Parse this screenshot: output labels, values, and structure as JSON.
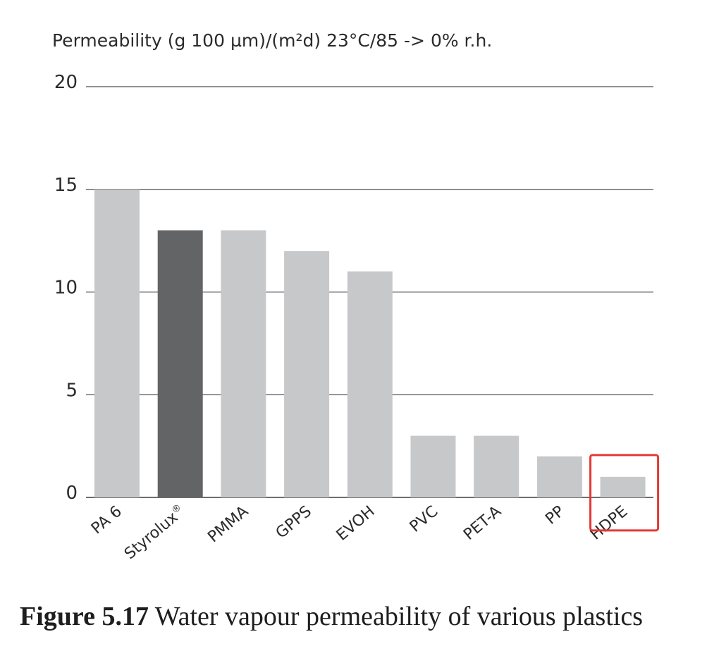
{
  "chart_data": {
    "type": "bar",
    "ylabel": "Permeability (g 100 µm)/(m²d) 23°C/85 -> 0% r.h.",
    "xlabel": "",
    "categories": [
      "PA 6",
      "Styrolux®",
      "PMMA",
      "GPPS",
      "EVOH",
      "PVC",
      "PET-A",
      "PP",
      "HDPE"
    ],
    "values": [
      15,
      13,
      13,
      12,
      11,
      3,
      3,
      2,
      1
    ],
    "bar_colors": [
      "#c7c8ca",
      "#636466",
      "#c7c8ca",
      "#c7c8ca",
      "#c7c8ca",
      "#c7c8ca",
      "#c7c8ca",
      "#c7c8ca",
      "#c7c8ca"
    ],
    "highlight_category": "HDPE",
    "highlight_color": "#e53935",
    "ylim": [
      0,
      20
    ],
    "yticks": [
      0,
      5,
      10,
      15,
      20
    ],
    "grid": true,
    "grid_color": "#6d6e71"
  },
  "caption": {
    "figure_number": "Figure 5.17",
    "text": " Water vapour permeability of various plastics"
  }
}
